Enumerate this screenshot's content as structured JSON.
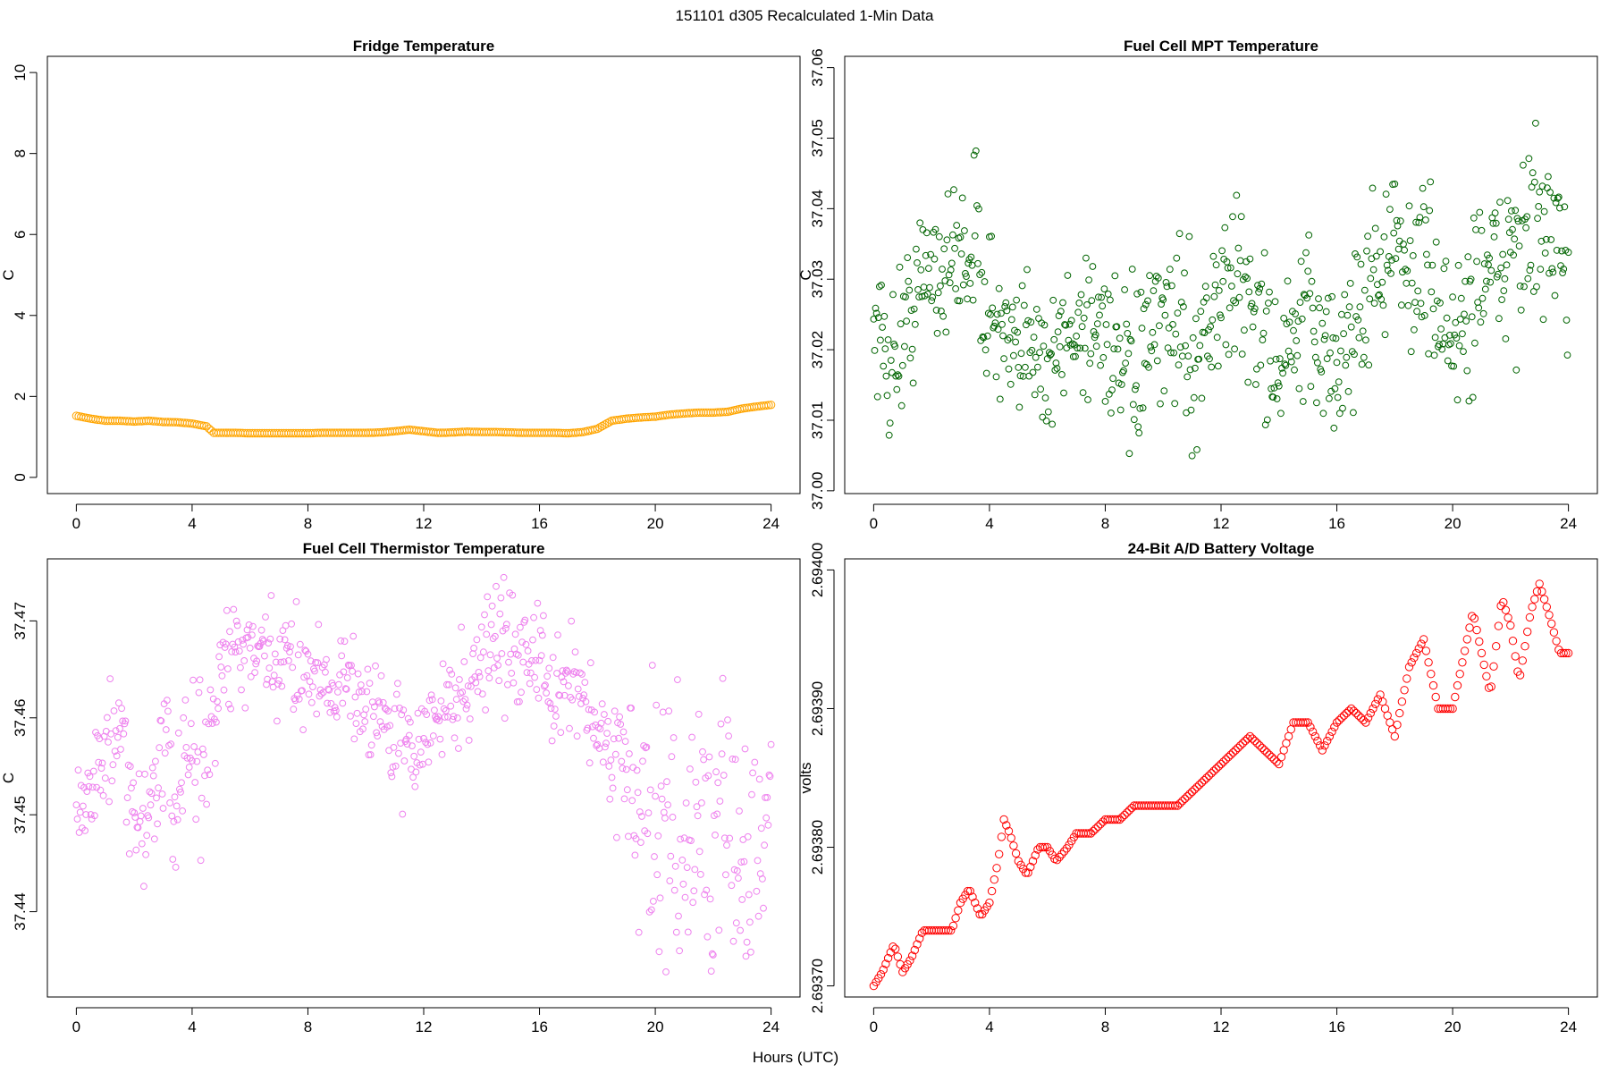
{
  "figure": {
    "suptitle": "151101   d305   Recalculated 1-Min Data",
    "xlabel": "Hours (UTC)"
  },
  "chart_data": [
    {
      "id": "fridge",
      "type": "scatter",
      "title": "Fridge Temperature",
      "ylabel": "C",
      "color": "#FFA500",
      "marker_radius": 4.2,
      "xlim": [
        -1,
        25
      ],
      "ylim": [
        -0.4,
        10.4
      ],
      "xticks": [
        0,
        4,
        8,
        12,
        16,
        20,
        24
      ],
      "yticks": [
        0,
        2,
        4,
        6,
        8,
        10
      ],
      "ytick_labels": [
        "0",
        "2",
        "4",
        "6",
        "8",
        "10"
      ],
      "x": [
        0,
        0.5,
        1,
        1.5,
        2,
        2.5,
        3,
        3.5,
        4,
        4.5,
        4.75,
        5,
        5.5,
        6,
        6.5,
        7,
        7.5,
        8,
        8.5,
        9,
        9.5,
        10,
        10.5,
        11,
        11.5,
        12,
        12.5,
        13,
        13.5,
        14,
        14.5,
        15,
        15.5,
        16,
        16.5,
        17,
        17.5,
        18,
        18.5,
        19,
        19.5,
        20,
        20.5,
        21,
        21.5,
        22,
        22.5,
        23,
        23.5,
        24
      ],
      "values": [
        1.52,
        1.45,
        1.4,
        1.4,
        1.38,
        1.4,
        1.37,
        1.36,
        1.33,
        1.26,
        1.1,
        1.1,
        1.1,
        1.09,
        1.09,
        1.09,
        1.09,
        1.09,
        1.1,
        1.1,
        1.1,
        1.1,
        1.11,
        1.14,
        1.18,
        1.14,
        1.1,
        1.11,
        1.13,
        1.12,
        1.12,
        1.11,
        1.1,
        1.1,
        1.1,
        1.09,
        1.12,
        1.2,
        1.4,
        1.45,
        1.48,
        1.5,
        1.55,
        1.58,
        1.6,
        1.6,
        1.62,
        1.7,
        1.75,
        1.79
      ]
    },
    {
      "id": "mpt",
      "type": "scatter",
      "title": "Fuel Cell MPT Temperature",
      "ylabel": "C",
      "color": "#006400",
      "marker_radius": 3.4,
      "xlim": [
        -1,
        25
      ],
      "ylim": [
        36.9996,
        37.0616
      ],
      "xticks": [
        0,
        4,
        8,
        12,
        16,
        20,
        24
      ],
      "yticks": [
        37.0,
        37.01,
        37.02,
        37.03,
        37.04,
        37.05,
        37.06
      ],
      "ytick_labels": [
        "37.00",
        "37.01",
        "37.02",
        "37.03",
        "37.04",
        "37.05",
        "37.06"
      ],
      "x": [
        0,
        0.5,
        1,
        1.5,
        2,
        2.5,
        3,
        3.5,
        4,
        4.5,
        5,
        5.5,
        6,
        6.5,
        7,
        7.5,
        8,
        8.5,
        9,
        9.5,
        10,
        10.5,
        11,
        11.5,
        12,
        12.5,
        13,
        13.5,
        14,
        14.5,
        15,
        15.5,
        16,
        16.5,
        17,
        17.5,
        18,
        18.5,
        19,
        19.5,
        20,
        20.5,
        21,
        21.5,
        22,
        22.5,
        23,
        23.5,
        24
      ],
      "values": [
        37.025,
        37.018,
        37.022,
        37.028,
        37.033,
        37.031,
        37.034,
        37.035,
        37.026,
        37.021,
        37.016,
        37.026,
        37.016,
        37.021,
        37.024,
        37.024,
        37.024,
        37.016,
        37.016,
        37.021,
        37.022,
        37.026,
        37.018,
        37.024,
        37.027,
        37.03,
        37.027,
        37.022,
        37.017,
        37.021,
        37.023,
        37.022,
        37.016,
        37.024,
        37.028,
        37.033,
        37.034,
        37.031,
        37.033,
        37.026,
        37.021,
        37.024,
        37.033,
        37.03,
        37.036,
        37.034,
        37.038,
        37.033,
        37.031
      ],
      "spread": [
        0.005,
        0.006,
        0.006,
        0.006,
        0.006,
        0.006,
        0.006,
        0.007,
        0.006,
        0.006,
        0.006,
        0.007,
        0.006,
        0.006,
        0.006,
        0.006,
        0.006,
        0.006,
        0.006,
        0.006,
        0.006,
        0.006,
        0.007,
        0.006,
        0.007,
        0.006,
        0.007,
        0.006,
        0.006,
        0.006,
        0.007,
        0.006,
        0.007,
        0.006,
        0.007,
        0.007,
        0.006,
        0.006,
        0.006,
        0.006,
        0.006,
        0.007,
        0.007,
        0.006,
        0.007,
        0.007,
        0.009,
        0.006,
        0.005
      ]
    },
    {
      "id": "thermistor",
      "type": "scatter",
      "title": "Fuel Cell Thermistor Temperature",
      "ylabel": "C",
      "color": "#EE82EE",
      "marker_radius": 3.4,
      "xlim": [
        -1,
        25
      ],
      "ylim": [
        37.4312,
        37.4764
      ],
      "xticks": [
        0,
        4,
        8,
        12,
        16,
        20,
        24
      ],
      "yticks": [
        37.44,
        37.45,
        37.46,
        37.47
      ],
      "ytick_labels": [
        "37.44",
        "37.45",
        "37.46",
        "37.47"
      ],
      "x": [
        0,
        0.5,
        1,
        1.5,
        2,
        2.5,
        3,
        3.5,
        4,
        4.5,
        5,
        5.5,
        6,
        6.5,
        7,
        7.5,
        8,
        8.5,
        9,
        9.5,
        10,
        10.5,
        11,
        11.5,
        12,
        12.5,
        13,
        13.5,
        14,
        14.5,
        15,
        15.5,
        16,
        16.5,
        17,
        17.5,
        18,
        18.5,
        19,
        19.5,
        20,
        20.5,
        21,
        21.5,
        22,
        22.5,
        23,
        23.5,
        24
      ],
      "values": [
        37.452,
        37.453,
        37.456,
        37.458,
        37.448,
        37.451,
        37.456,
        37.451,
        37.457,
        37.455,
        37.465,
        37.467,
        37.466,
        37.466,
        37.465,
        37.466,
        37.465,
        37.464,
        37.464,
        37.463,
        37.462,
        37.46,
        37.458,
        37.456,
        37.458,
        37.46,
        37.462,
        37.463,
        37.466,
        37.469,
        37.466,
        37.468,
        37.466,
        37.461,
        37.464,
        37.463,
        37.458,
        37.457,
        37.456,
        37.449,
        37.447,
        37.45,
        37.444,
        37.451,
        37.445,
        37.449,
        37.443,
        37.446,
        37.45
      ],
      "spread": [
        0.003,
        0.003,
        0.003,
        0.004,
        0.003,
        0.004,
        0.004,
        0.004,
        0.005,
        0.005,
        0.004,
        0.003,
        0.003,
        0.003,
        0.003,
        0.003,
        0.003,
        0.003,
        0.003,
        0.003,
        0.003,
        0.003,
        0.003,
        0.003,
        0.003,
        0.003,
        0.003,
        0.003,
        0.003,
        0.004,
        0.003,
        0.004,
        0.003,
        0.003,
        0.003,
        0.003,
        0.003,
        0.003,
        0.004,
        0.007,
        0.007,
        0.008,
        0.007,
        0.008,
        0.007,
        0.008,
        0.007,
        0.008,
        0.006
      ]
    },
    {
      "id": "battery",
      "type": "scatter",
      "title": "24-Bit A/D Battery Voltage",
      "ylabel": "volts",
      "color": "#FF0000",
      "marker_radius": 4.2,
      "xlim": [
        -1,
        25
      ],
      "ylim": [
        2.693692,
        2.694008
      ],
      "xticks": [
        0,
        4,
        8,
        12,
        16,
        20,
        24
      ],
      "yticks": [
        2.6937,
        2.6938,
        2.6939,
        2.694
      ],
      "ytick_labels": [
        "2.69370",
        "2.69380",
        "2.69390",
        "2.69400"
      ],
      "x": [
        0,
        0.3,
        0.7,
        1,
        1.3,
        1.7,
        2,
        2.3,
        2.7,
        3,
        3.3,
        3.7,
        4,
        4.3,
        4.5,
        4.7,
        5,
        5.3,
        5.7,
        6,
        6.3,
        6.7,
        7,
        7.5,
        8,
        8.5,
        9,
        9.5,
        10,
        10.5,
        11,
        11.5,
        12,
        12.5,
        13,
        13.5,
        14,
        14.5,
        15,
        15.5,
        16,
        16.5,
        17,
        17.5,
        18,
        18.5,
        19,
        19.5,
        20,
        20.3,
        20.7,
        21,
        21.3,
        21.7,
        22,
        22.3,
        22.7,
        23,
        23.3,
        23.7,
        24
      ],
      "values": [
        2.6937,
        2.69371,
        2.69373,
        2.69371,
        2.69372,
        2.69374,
        2.69374,
        2.69374,
        2.69374,
        2.69376,
        2.69377,
        2.69375,
        2.69376,
        2.69379,
        2.69382,
        2.69381,
        2.69379,
        2.69378,
        2.6938,
        2.6938,
        2.69379,
        2.6938,
        2.69381,
        2.69381,
        2.69382,
        2.69382,
        2.69383,
        2.69383,
        2.69383,
        2.69383,
        2.69384,
        2.69385,
        2.69386,
        2.69387,
        2.69388,
        2.69387,
        2.69386,
        2.69389,
        2.69389,
        2.69387,
        2.69389,
        2.6939,
        2.69389,
        2.69391,
        2.69388,
        2.69393,
        2.69395,
        2.6939,
        2.6939,
        2.69393,
        2.69397,
        2.69394,
        2.69391,
        2.69398,
        2.69396,
        2.69392,
        2.69397,
        2.69399,
        2.69397,
        2.69394,
        2.69394
      ]
    }
  ]
}
